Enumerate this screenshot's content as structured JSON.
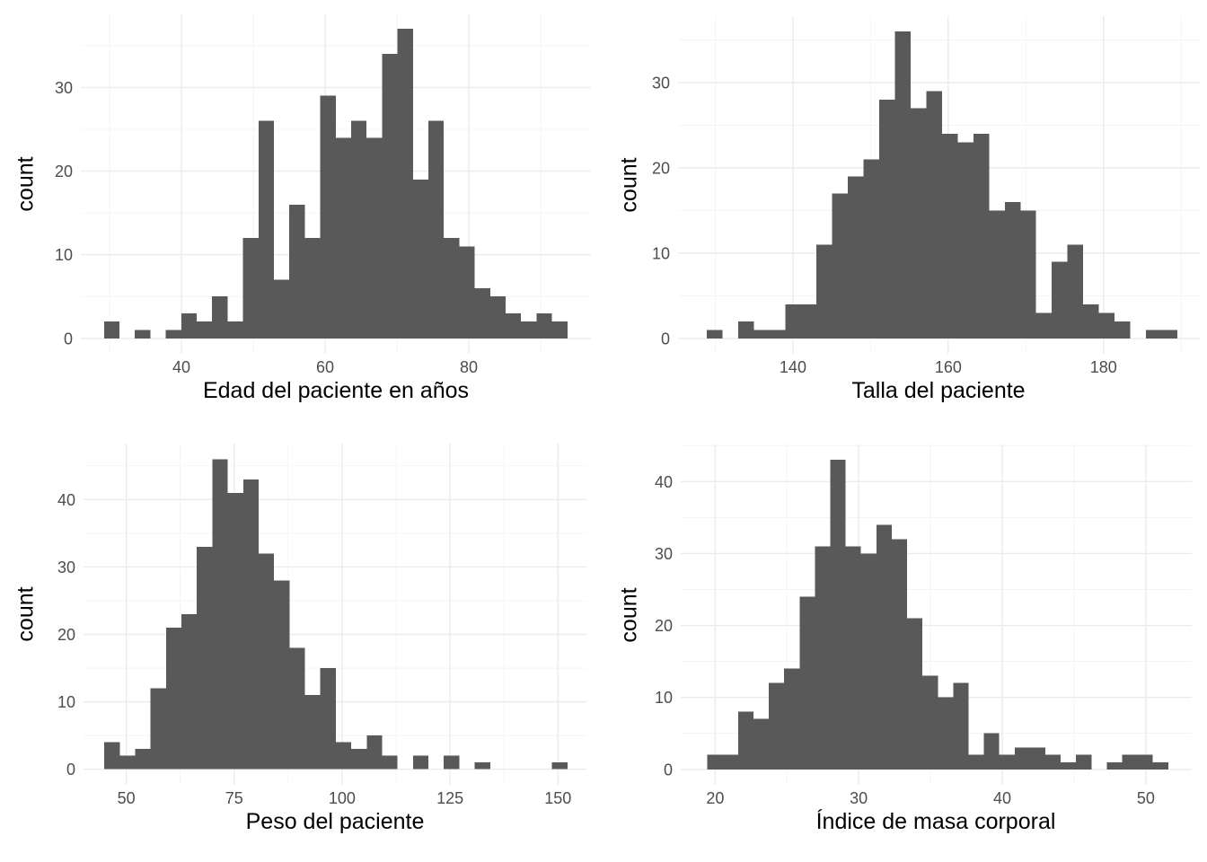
{
  "figure": {
    "background": "#FFFFFF",
    "bar_color": "#595959",
    "grid_major_color": "#EBEBEB",
    "grid_minor_color": "#F2F2F2",
    "tick_label_color": "#4D4D4D",
    "axis_title_color": "#000000"
  },
  "chart_data": [
    {
      "type": "bar",
      "subtype": "histogram",
      "title": "",
      "xlabel": "Edad del paciente en años",
      "ylabel": "count",
      "bin_start": 29.23,
      "bin_width": 2.15,
      "counts": [
        2,
        0,
        1,
        0,
        1,
        3,
        2,
        5,
        2,
        12,
        26,
        7,
        16,
        12,
        29,
        24,
        26,
        24,
        34,
        37,
        19,
        26,
        12,
        11,
        6,
        5,
        3,
        2,
        3,
        2
      ],
      "x_ticks": [
        40,
        60,
        80
      ],
      "x_minor_gridlines": [
        30,
        50,
        70,
        90
      ],
      "y_ticks": [
        0,
        10,
        20,
        30
      ],
      "y_minor_gridlines": [
        5,
        15,
        25,
        35
      ],
      "xlim": [
        26.0,
        97.0
      ],
      "ylim": [
        -1.85,
        38.85
      ],
      "grid": true,
      "legend": "none"
    },
    {
      "type": "bar",
      "subtype": "histogram",
      "title": "",
      "xlabel": "Talla del paciente",
      "ylabel": "count",
      "bin_start": 128.9,
      "bin_width": 2.02,
      "counts": [
        1,
        0,
        2,
        1,
        1,
        4,
        4,
        11,
        17,
        19,
        21,
        28,
        36,
        27,
        29,
        24,
        23,
        24,
        15,
        16,
        15,
        3,
        9,
        11,
        4,
        3,
        2,
        0,
        1,
        1
      ],
      "x_ticks": [
        140,
        160,
        180
      ],
      "x_minor_gridlines": [
        130,
        150,
        170,
        190
      ],
      "y_ticks": [
        0,
        10,
        20,
        30
      ],
      "y_minor_gridlines": [
        5,
        15,
        25,
        35
      ],
      "xlim": [
        125.2,
        192.4
      ],
      "ylim": [
        -1.8,
        37.8
      ],
      "grid": true,
      "legend": "none"
    },
    {
      "type": "bar",
      "subtype": "histogram",
      "title": "",
      "xlabel": "Peso del paciente",
      "ylabel": "count",
      "bin_start": 44.9,
      "bin_width": 3.576,
      "counts": [
        4,
        2,
        3,
        12,
        21,
        23,
        33,
        46,
        41,
        43,
        32,
        28,
        18,
        11,
        15,
        4,
        3,
        5,
        2,
        0,
        2,
        0,
        2,
        0,
        1,
        0,
        0,
        0,
        0,
        1
      ],
      "x_ticks": [
        50,
        75,
        100,
        125,
        150
      ],
      "x_minor_gridlines": [
        62.5,
        87.5,
        112.5,
        137.5
      ],
      "y_ticks": [
        0,
        10,
        20,
        30,
        40
      ],
      "y_minor_gridlines": [
        5,
        15,
        25,
        35,
        45
      ],
      "xlim": [
        40.1,
        156.6
      ],
      "ylim": [
        -2.3,
        48.3
      ],
      "grid": true,
      "legend": "none"
    },
    {
      "type": "bar",
      "subtype": "histogram",
      "title": "",
      "xlabel": "Índice de masa corporal",
      "ylabel": "count",
      "bin_start": 19.46,
      "bin_width": 1.07,
      "counts": [
        2,
        2,
        8,
        7,
        12,
        14,
        24,
        31,
        43,
        31,
        30,
        34,
        32,
        21,
        13,
        10,
        12,
        2,
        5,
        2,
        3,
        3,
        2,
        1,
        2,
        0,
        1,
        2,
        2,
        1
      ],
      "x_ticks": [
        20,
        30,
        40,
        50
      ],
      "x_minor_gridlines": [
        25,
        35,
        45
      ],
      "y_ticks": [
        0,
        10,
        20,
        30,
        40
      ],
      "y_minor_gridlines": [
        5,
        15,
        25,
        35,
        45
      ],
      "xlim": [
        17.6,
        53.2
      ],
      "ylim": [
        -2.15,
        45.15
      ],
      "grid": true,
      "legend": "none"
    }
  ]
}
